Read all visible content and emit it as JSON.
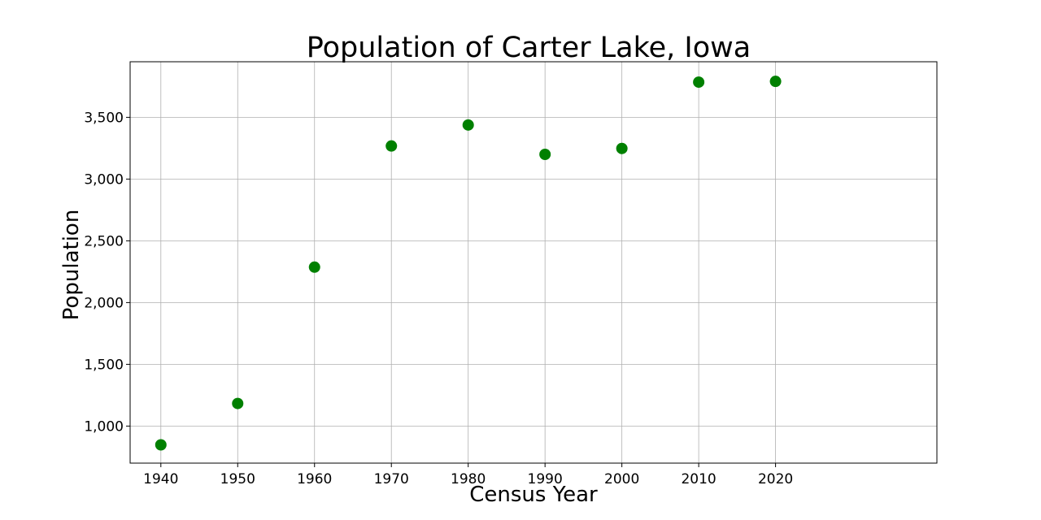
{
  "chart_data": {
    "type": "scatter",
    "title": "Population of Carter Lake, Iowa",
    "xlabel": "Census Year",
    "ylabel": "Population",
    "x": [
      1940,
      1950,
      1960,
      1970,
      1980,
      1990,
      2000,
      2010,
      2020
    ],
    "y": [
      848,
      1183,
      2287,
      3268,
      3438,
      3200,
      3248,
      3785,
      3791
    ],
    "xlim": [
      1936,
      2041
    ],
    "ylim": [
      700,
      3950
    ],
    "xticks": [
      1940,
      1950,
      1960,
      1970,
      1980,
      1990,
      2000,
      2010,
      2020
    ],
    "xtick_labels": [
      "1940",
      "1950",
      "1960",
      "1970",
      "1980",
      "1990",
      "2000",
      "2010",
      "2020"
    ],
    "yticks": [
      1000,
      1500,
      2000,
      2500,
      3000,
      3500
    ],
    "ytick_labels": [
      "1,000",
      "1,500",
      "2,000",
      "2,500",
      "3,000",
      "3,500"
    ],
    "grid": true,
    "marker_color": "#008000"
  }
}
